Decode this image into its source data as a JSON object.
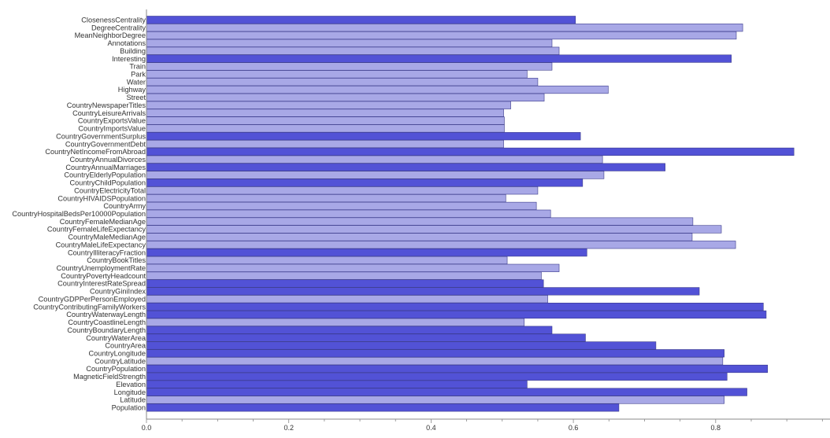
{
  "chart_data": {
    "type": "bar",
    "orientation": "horizontal",
    "title": "",
    "xlabel": "",
    "ylabel": "",
    "xlim": [
      0,
      0.96
    ],
    "xticks": [
      "0.0",
      "0.2",
      "0.4",
      "0.6",
      "0.8"
    ],
    "grid": false,
    "legend": "none",
    "colors": {
      "dark": "#5252d6",
      "light": "#a8a8e6",
      "edge": "#3a3a8a"
    },
    "categories": [
      "ClosenessCentrality",
      "DegreeCentrality",
      "MeanNeighborDegree",
      "Annotations",
      "Building",
      "Interesting",
      "Train",
      "Park",
      "Water",
      "Highway",
      "Street",
      "CountryNewspaperTitles",
      "CountryLeisureArrivals",
      "CountryExportsValue",
      "CountryImportsValue",
      "CountryGovernmentSurplus",
      "CountryGovernmentDebt",
      "CountryNetIncomeFromAbroad",
      "CountryAnnualDivorces",
      "CountryAnnualMarriages",
      "CountryElderlyPopulation",
      "CountryChildPopulation",
      "CountryElectricityTotal",
      "CountryHIVAIDSPopulation",
      "CountryArmy",
      "CountryHospitalBedsPer10000Population",
      "CountryFemaleMedianAge",
      "CountryFemaleLifeExpectancy",
      "CountryMaleMedianAge",
      "CountryMaleLifeExpectancy",
      "CountryIlliteracyFraction",
      "CountryBookTitles",
      "CountryUnemploymentRate",
      "CountryPovertyHeadcount",
      "CountryInterestRateSpread",
      "CountryGiniIndex",
      "CountryGDPPerPersonEmployed",
      "CountryContributingFamilyWorkers",
      "CountryWaterwayLength",
      "CountryCoastlineLength",
      "CountryBoundaryLength",
      "CountryWaterArea",
      "CountryArea",
      "CountryLongitude",
      "CountryLatitude",
      "CountryPopulation",
      "MagneticFieldStrength",
      "Elevation",
      "Longitude",
      "Latitude",
      "Population"
    ],
    "values": [
      0.603,
      0.838,
      0.829,
      0.57,
      0.58,
      0.822,
      0.57,
      0.535,
      0.55,
      0.649,
      0.559,
      0.512,
      0.502,
      0.503,
      0.503,
      0.61,
      0.502,
      0.91,
      0.641,
      0.729,
      0.643,
      0.613,
      0.55,
      0.505,
      0.548,
      0.568,
      0.768,
      0.808,
      0.767,
      0.828,
      0.619,
      0.507,
      0.58,
      0.555,
      0.558,
      0.777,
      0.564,
      0.867,
      0.871,
      0.531,
      0.57,
      0.617,
      0.716,
      0.812,
      0.81,
      0.873,
      0.816,
      0.535,
      0.844,
      0.812,
      0.664
    ],
    "shades": [
      "dark",
      "light",
      "light",
      "light",
      "light",
      "dark",
      "light",
      "light",
      "light",
      "light",
      "light",
      "light",
      "light",
      "light",
      "light",
      "dark",
      "light",
      "dark",
      "light",
      "dark",
      "light",
      "dark",
      "light",
      "light",
      "light",
      "light",
      "light",
      "light",
      "light",
      "light",
      "dark",
      "light",
      "light",
      "light",
      "dark",
      "dark",
      "light",
      "dark",
      "dark",
      "light",
      "dark",
      "dark",
      "dark",
      "dark",
      "light",
      "dark",
      "dark",
      "dark",
      "dark",
      "light",
      "dark"
    ]
  }
}
